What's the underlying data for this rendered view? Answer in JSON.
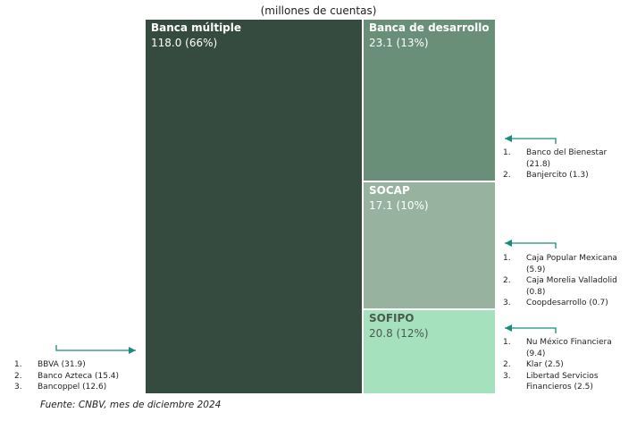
{
  "chart_data": {
    "type": "treemap",
    "title": "(millones de cuentas)",
    "unit": "millones de cuentas",
    "items": [
      {
        "name": "Banca múltiple",
        "value": 118.0,
        "share": "66%",
        "label": "118.0 (66%)",
        "color": "#354b3f",
        "text_color": "#ffffff",
        "top": [
          "BBVA (31.9)",
          "Banco Azteca (15.4)",
          "Bancoppel (12.6)"
        ]
      },
      {
        "name": "Banca de desarrollo",
        "value": 23.1,
        "share": "13%",
        "label": "23.1 (13%)",
        "color": "#6a8f79",
        "text_color": "#ffffff",
        "top": [
          "Banco del Bienestar (21.8)",
          "Banjercito (1.3)"
        ]
      },
      {
        "name": "SOCAP",
        "value": 17.1,
        "share": "10%",
        "label": "17.1 (10%)",
        "color": "#97b3a0",
        "text_color": "#ffffff",
        "top": [
          "Caja Popular Mexicana (5.9)",
          "Caja Morelia Valladolid (0.8)",
          "Coopdesarrollo (0.7)"
        ]
      },
      {
        "name": "SOFIPO",
        "value": 20.8,
        "share": "12%",
        "label": "20.8 (12%)",
        "color": "#a6e1bd",
        "text_color": "#4a5a50",
        "top": [
          "Nu México Financiera (9.4)",
          "Klar (2.5)",
          "Libertad Servicios Financieros (2.5)"
        ]
      }
    ],
    "arrow_color": "#1a8a7a",
    "source": "Fuente: CNBV, mes de diciembre 2024"
  }
}
